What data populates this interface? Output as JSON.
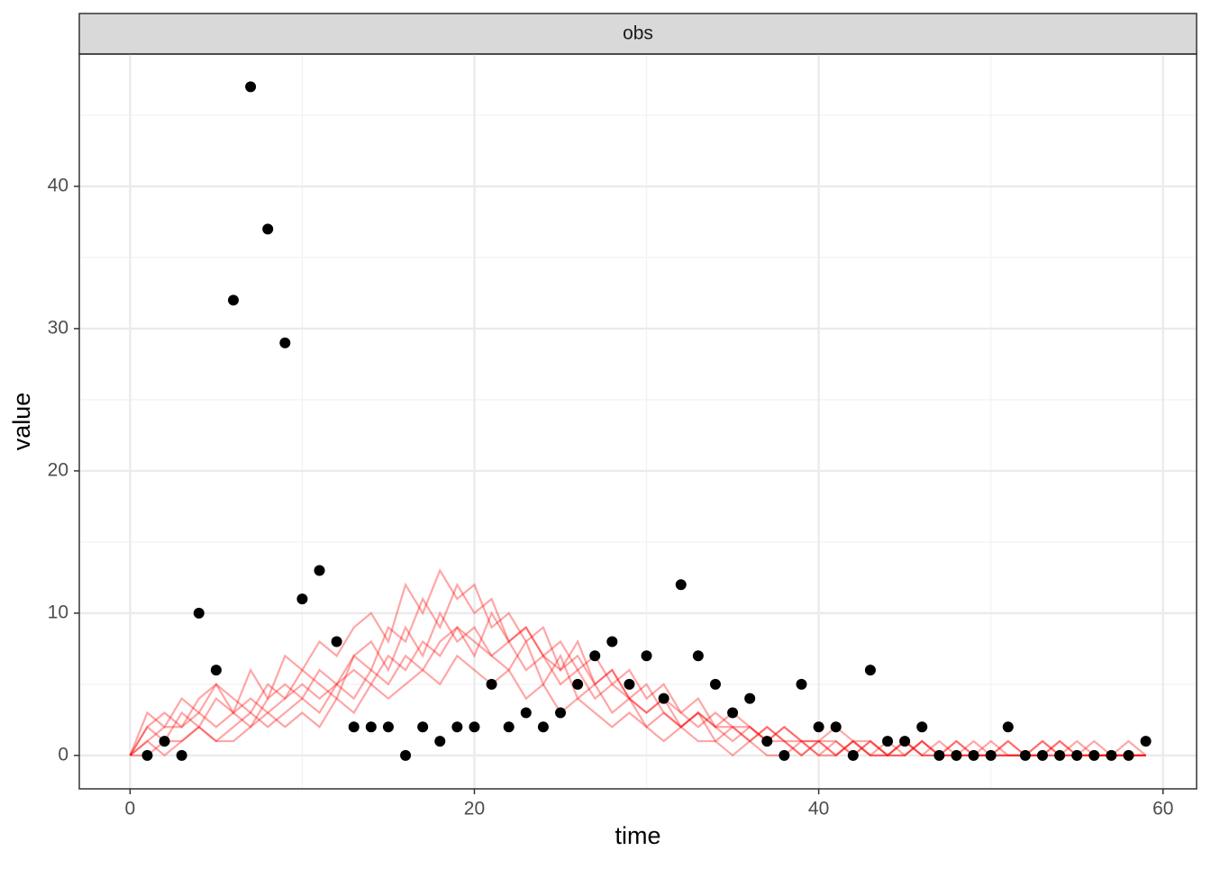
{
  "chart_data": {
    "type": "scatter",
    "facet": "obs",
    "x_label": "time",
    "y_label": "value",
    "x": [
      1,
      2,
      3,
      4,
      5,
      6,
      7,
      8,
      9,
      10,
      11,
      12,
      13,
      14,
      15,
      16,
      17,
      18,
      19,
      20,
      21,
      22,
      23,
      24,
      25,
      26,
      27,
      28,
      29,
      30,
      31,
      32,
      33,
      34,
      35,
      36,
      37,
      38,
      39,
      40,
      41,
      42,
      43,
      44,
      45,
      46,
      47,
      48,
      49,
      50,
      51,
      52,
      53,
      54,
      55,
      56,
      57,
      58,
      59
    ],
    "values": [
      0,
      1,
      0,
      10,
      6,
      32,
      47,
      37,
      29,
      11,
      13,
      8,
      2,
      2,
      2,
      0,
      2,
      1,
      2,
      2,
      5,
      2,
      3,
      2,
      3,
      5,
      7,
      8,
      5,
      7,
      4,
      12,
      7,
      5,
      3,
      4,
      1,
      0,
      5,
      2,
      2,
      0,
      6,
      1,
      1,
      2,
      0,
      0,
      0,
      0,
      2,
      0,
      0,
      0,
      0,
      0,
      0,
      0,
      1
    ],
    "color": "#000000",
    "simulations": {
      "color": "#ff0000",
      "x": [
        0,
        1,
        2,
        3,
        4,
        5,
        6,
        7,
        8,
        9,
        10,
        11,
        12,
        13,
        14,
        15,
        16,
        17,
        18,
        19,
        20,
        21,
        22,
        23,
        24,
        25,
        26,
        27,
        28,
        29,
        30,
        31,
        32,
        33,
        34,
        35,
        36,
        37,
        38,
        39,
        40,
        41,
        42,
        43,
        44,
        45,
        46,
        47,
        48,
        49,
        50,
        51,
        52,
        53,
        54,
        55,
        56,
        57,
        58,
        59
      ],
      "series": [
        {
          "values": [
            0,
            1,
            2,
            2,
            3,
            2,
            3,
            4,
            3,
            4,
            5,
            4,
            5,
            6,
            5,
            7,
            6,
            8,
            7,
            9,
            8,
            7,
            8,
            6,
            7,
            5,
            6,
            4,
            5,
            4,
            3,
            4,
            3,
            2,
            3,
            2,
            2,
            1,
            2,
            1,
            1,
            0,
            1,
            1,
            0,
            1,
            0,
            0,
            1,
            0,
            0,
            1,
            0,
            0,
            0,
            1,
            0,
            0,
            0,
            0
          ]
        },
        {
          "values": [
            0,
            2,
            1,
            3,
            2,
            4,
            3,
            2,
            4,
            5,
            4,
            6,
            5,
            7,
            8,
            6,
            9,
            7,
            10,
            8,
            9,
            7,
            6,
            8,
            5,
            7,
            4,
            5,
            3,
            4,
            2,
            3,
            2,
            3,
            1,
            2,
            1,
            2,
            1,
            0,
            1,
            0,
            1,
            0,
            0,
            1,
            0,
            1,
            0,
            0,
            0,
            1,
            0,
            0,
            1,
            0,
            0,
            0,
            0,
            0
          ]
        },
        {
          "values": [
            0,
            0,
            1,
            1,
            2,
            1,
            2,
            3,
            2,
            3,
            4,
            3,
            5,
            4,
            6,
            5,
            7,
            6,
            8,
            9,
            7,
            10,
            8,
            9,
            7,
            8,
            6,
            7,
            5,
            6,
            4,
            5,
            3,
            4,
            2,
            3,
            2,
            1,
            2,
            1,
            1,
            2,
            1,
            0,
            1,
            0,
            1,
            0,
            0,
            1,
            0,
            0,
            0,
            1,
            0,
            0,
            0,
            0,
            1,
            0
          ]
        },
        {
          "values": [
            0,
            3,
            2,
            4,
            3,
            5,
            4,
            3,
            5,
            4,
            6,
            5,
            4,
            7,
            6,
            9,
            8,
            11,
            9,
            12,
            10,
            11,
            8,
            9,
            7,
            6,
            8,
            5,
            6,
            4,
            5,
            3,
            2,
            3,
            2,
            1,
            2,
            1,
            1,
            0,
            1,
            1,
            0,
            1,
            0,
            0,
            1,
            0,
            0,
            0,
            1,
            0,
            0,
            0,
            0,
            0,
            1,
            0,
            0,
            0
          ]
        },
        {
          "values": [
            0,
            1,
            0,
            1,
            2,
            1,
            1,
            2,
            3,
            2,
            3,
            2,
            4,
            3,
            5,
            4,
            5,
            6,
            5,
            7,
            6,
            5,
            6,
            4,
            5,
            3,
            4,
            3,
            2,
            3,
            2,
            1,
            2,
            1,
            1,
            0,
            1,
            0,
            0,
            1,
            0,
            0,
            1,
            0,
            0,
            0,
            1,
            0,
            0,
            0,
            0,
            0,
            0,
            1,
            0,
            0,
            0,
            0,
            0,
            0
          ]
        },
        {
          "values": [
            0,
            2,
            3,
            2,
            4,
            5,
            3,
            6,
            4,
            7,
            6,
            8,
            7,
            9,
            10,
            8,
            12,
            10,
            13,
            11,
            12,
            9,
            10,
            8,
            9,
            6,
            7,
            5,
            6,
            4,
            3,
            4,
            2,
            3,
            2,
            2,
            1,
            2,
            1,
            1,
            0,
            1,
            0,
            1,
            0,
            1,
            0,
            0,
            1,
            0,
            0,
            0,
            0,
            0,
            1,
            0,
            0,
            0,
            0,
            0
          ]
        }
      ]
    },
    "xlim": [
      -2.95,
      61.95
    ],
    "xticks": [
      0,
      20,
      40,
      60
    ],
    "ylim": [
      -2.35,
      49.3
    ],
    "yticks": [
      0,
      10,
      20,
      30,
      40
    ],
    "grid": true
  }
}
